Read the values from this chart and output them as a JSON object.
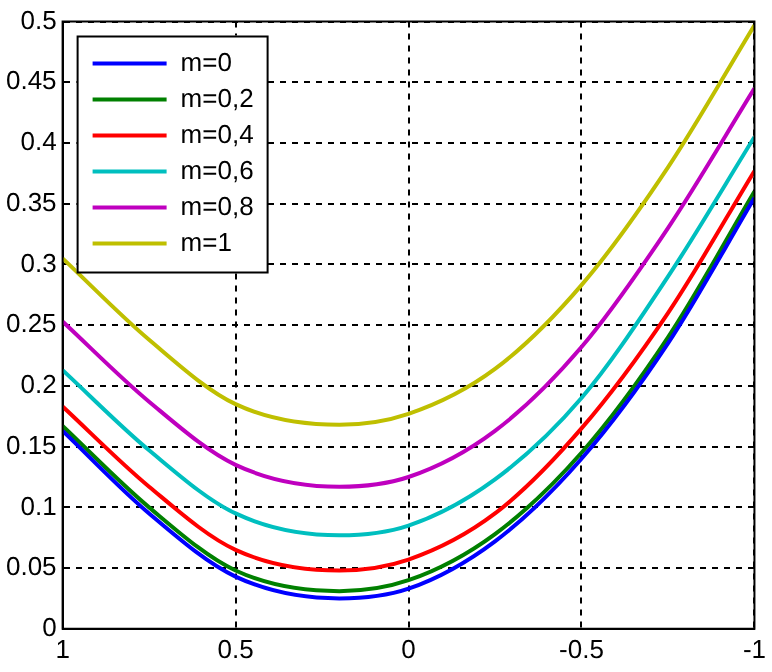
{
  "chart_data": {
    "type": "line",
    "x": [
      1,
      0.75,
      0.5,
      0.2,
      0,
      -0.25,
      -0.5,
      -0.75,
      -1
    ],
    "series": [
      {
        "name": "m=0",
        "color": "#0000ff",
        "values": [
          0.163,
          0.095,
          0.043,
          0.025,
          0.033,
          0.072,
          0.14,
          0.235,
          0.355
        ]
      },
      {
        "name": "m=0,2",
        "color": "#008000",
        "values": [
          0.167,
          0.1,
          0.048,
          0.031,
          0.04,
          0.078,
          0.145,
          0.24,
          0.36
        ]
      },
      {
        "name": "m=0,4",
        "color": "#ff0000",
        "values": [
          0.183,
          0.117,
          0.065,
          0.048,
          0.057,
          0.095,
          0.165,
          0.26,
          0.377
        ]
      },
      {
        "name": "m=0,6",
        "color": "#00bfbf",
        "values": [
          0.213,
          0.147,
          0.095,
          0.077,
          0.085,
          0.123,
          0.19,
          0.29,
          0.405
        ]
      },
      {
        "name": "m=0,8",
        "color": "#bf00bf",
        "values": [
          0.253,
          0.187,
          0.135,
          0.117,
          0.125,
          0.163,
          0.232,
          0.33,
          0.445
        ]
      },
      {
        "name": "m=1",
        "color": "#bfbf00",
        "values": [
          0.305,
          0.238,
          0.185,
          0.168,
          0.177,
          0.214,
          0.283,
          0.38,
          0.497
        ]
      }
    ],
    "xlim": [
      1,
      -1
    ],
    "xticks": [
      1,
      0.5,
      0,
      -0.5,
      -1
    ],
    "ylim": [
      0,
      0.5
    ],
    "yticks": [
      0,
      0.05,
      0.1,
      0.15,
      0.2,
      0.25,
      0.3,
      0.35,
      0.4,
      0.45,
      0.5
    ],
    "grid": true,
    "legend": "top left",
    "line_style": "solid",
    "marker": "none"
  }
}
